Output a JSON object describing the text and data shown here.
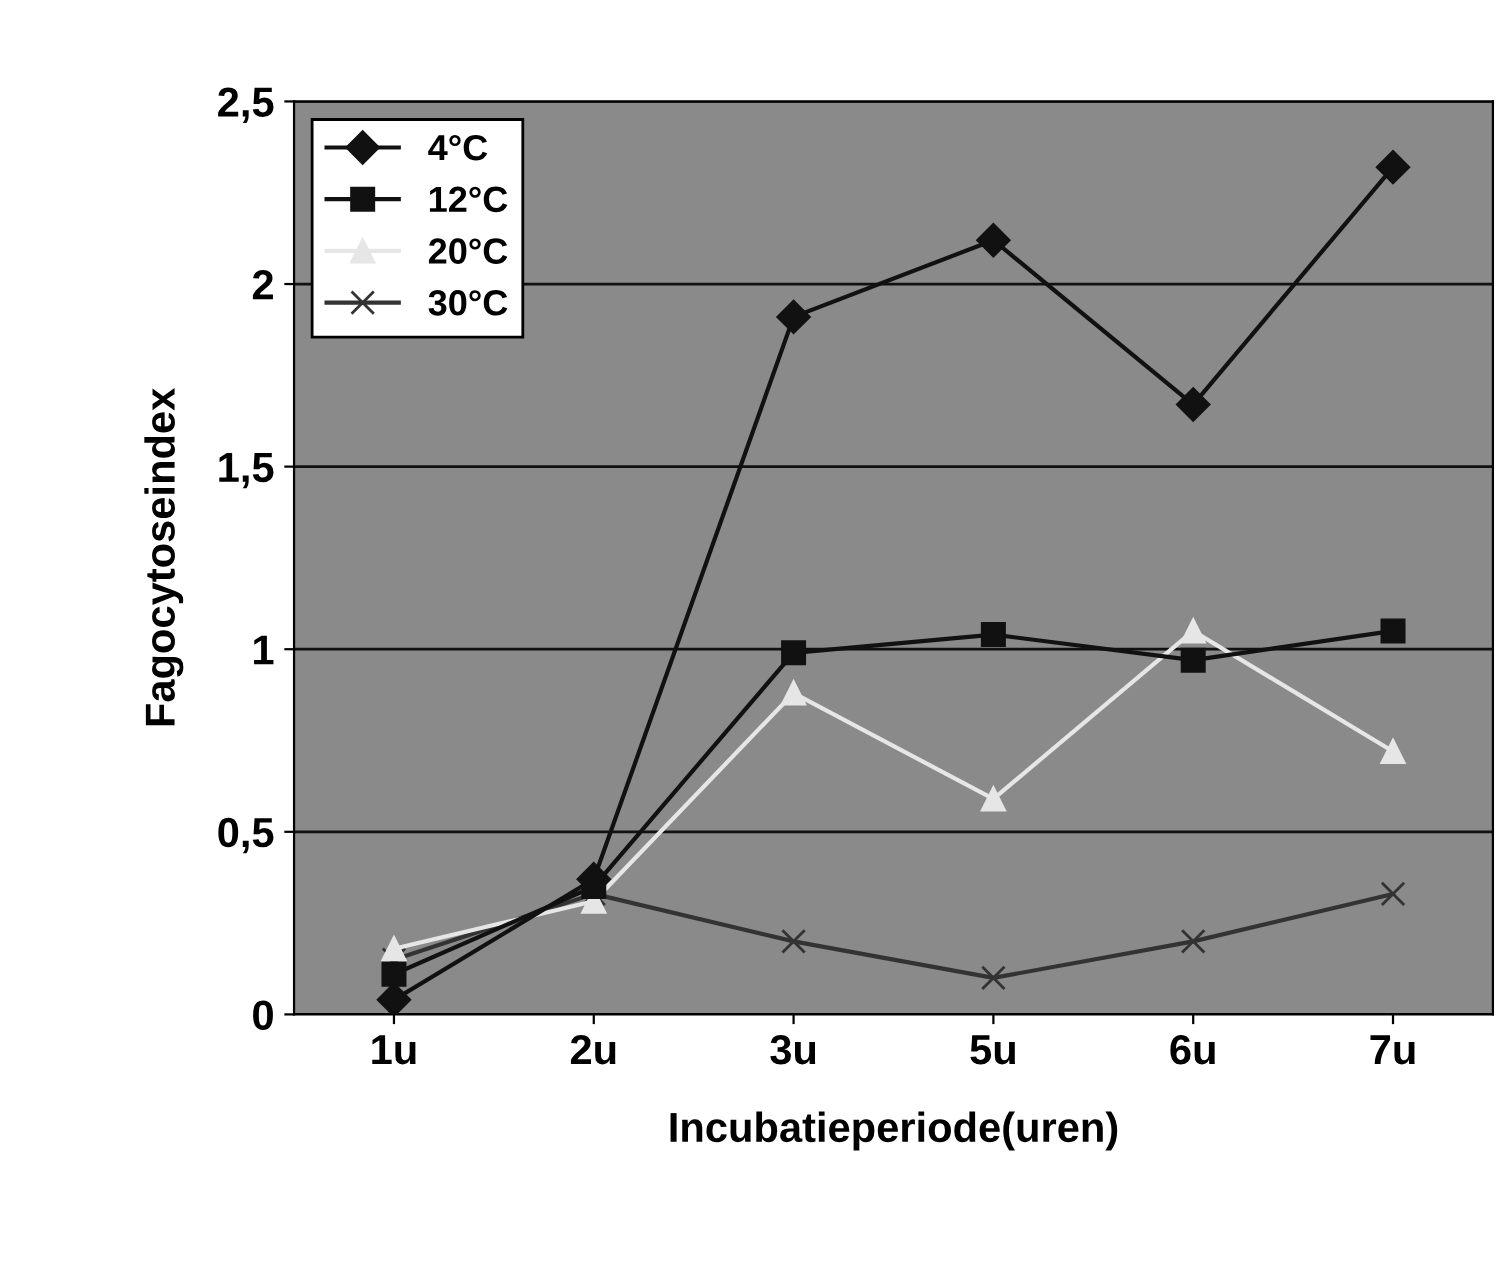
{
  "chart_data": {
    "type": "line",
    "xlabel": "Incubatieperiode(uren)",
    "ylabel": "Fagocytoseindex",
    "categories": [
      "1u",
      "2u",
      "3u",
      "5u",
      "6u",
      "7u"
    ],
    "series": [
      {
        "name": "4°C",
        "color": "#111111",
        "marker": "diamond",
        "values": [
          0.04,
          0.37,
          1.91,
          2.12,
          1.67,
          2.32
        ]
      },
      {
        "name": "12°C",
        "color": "#111111",
        "marker": "square",
        "values": [
          0.11,
          0.35,
          0.99,
          1.04,
          0.97,
          1.05
        ]
      },
      {
        "name": "20°C",
        "color": "#e6e6e6",
        "marker": "triangle",
        "values": [
          0.18,
          0.31,
          0.88,
          0.59,
          1.05,
          0.72
        ]
      },
      {
        "name": "30°C",
        "color": "#333333",
        "marker": "cross",
        "values": [
          0.15,
          0.33,
          0.2,
          0.1,
          0.2,
          0.33
        ]
      }
    ],
    "ylim": [
      0,
      2.5
    ],
    "yticks": [
      0,
      {
        "value": 0.5,
        "label": "0,5"
      },
      1,
      {
        "value": 1.5,
        "label": "1,5"
      },
      2,
      {
        "value": 2.5,
        "label": "2,5"
      }
    ],
    "grid": "y",
    "legend": "top left"
  }
}
